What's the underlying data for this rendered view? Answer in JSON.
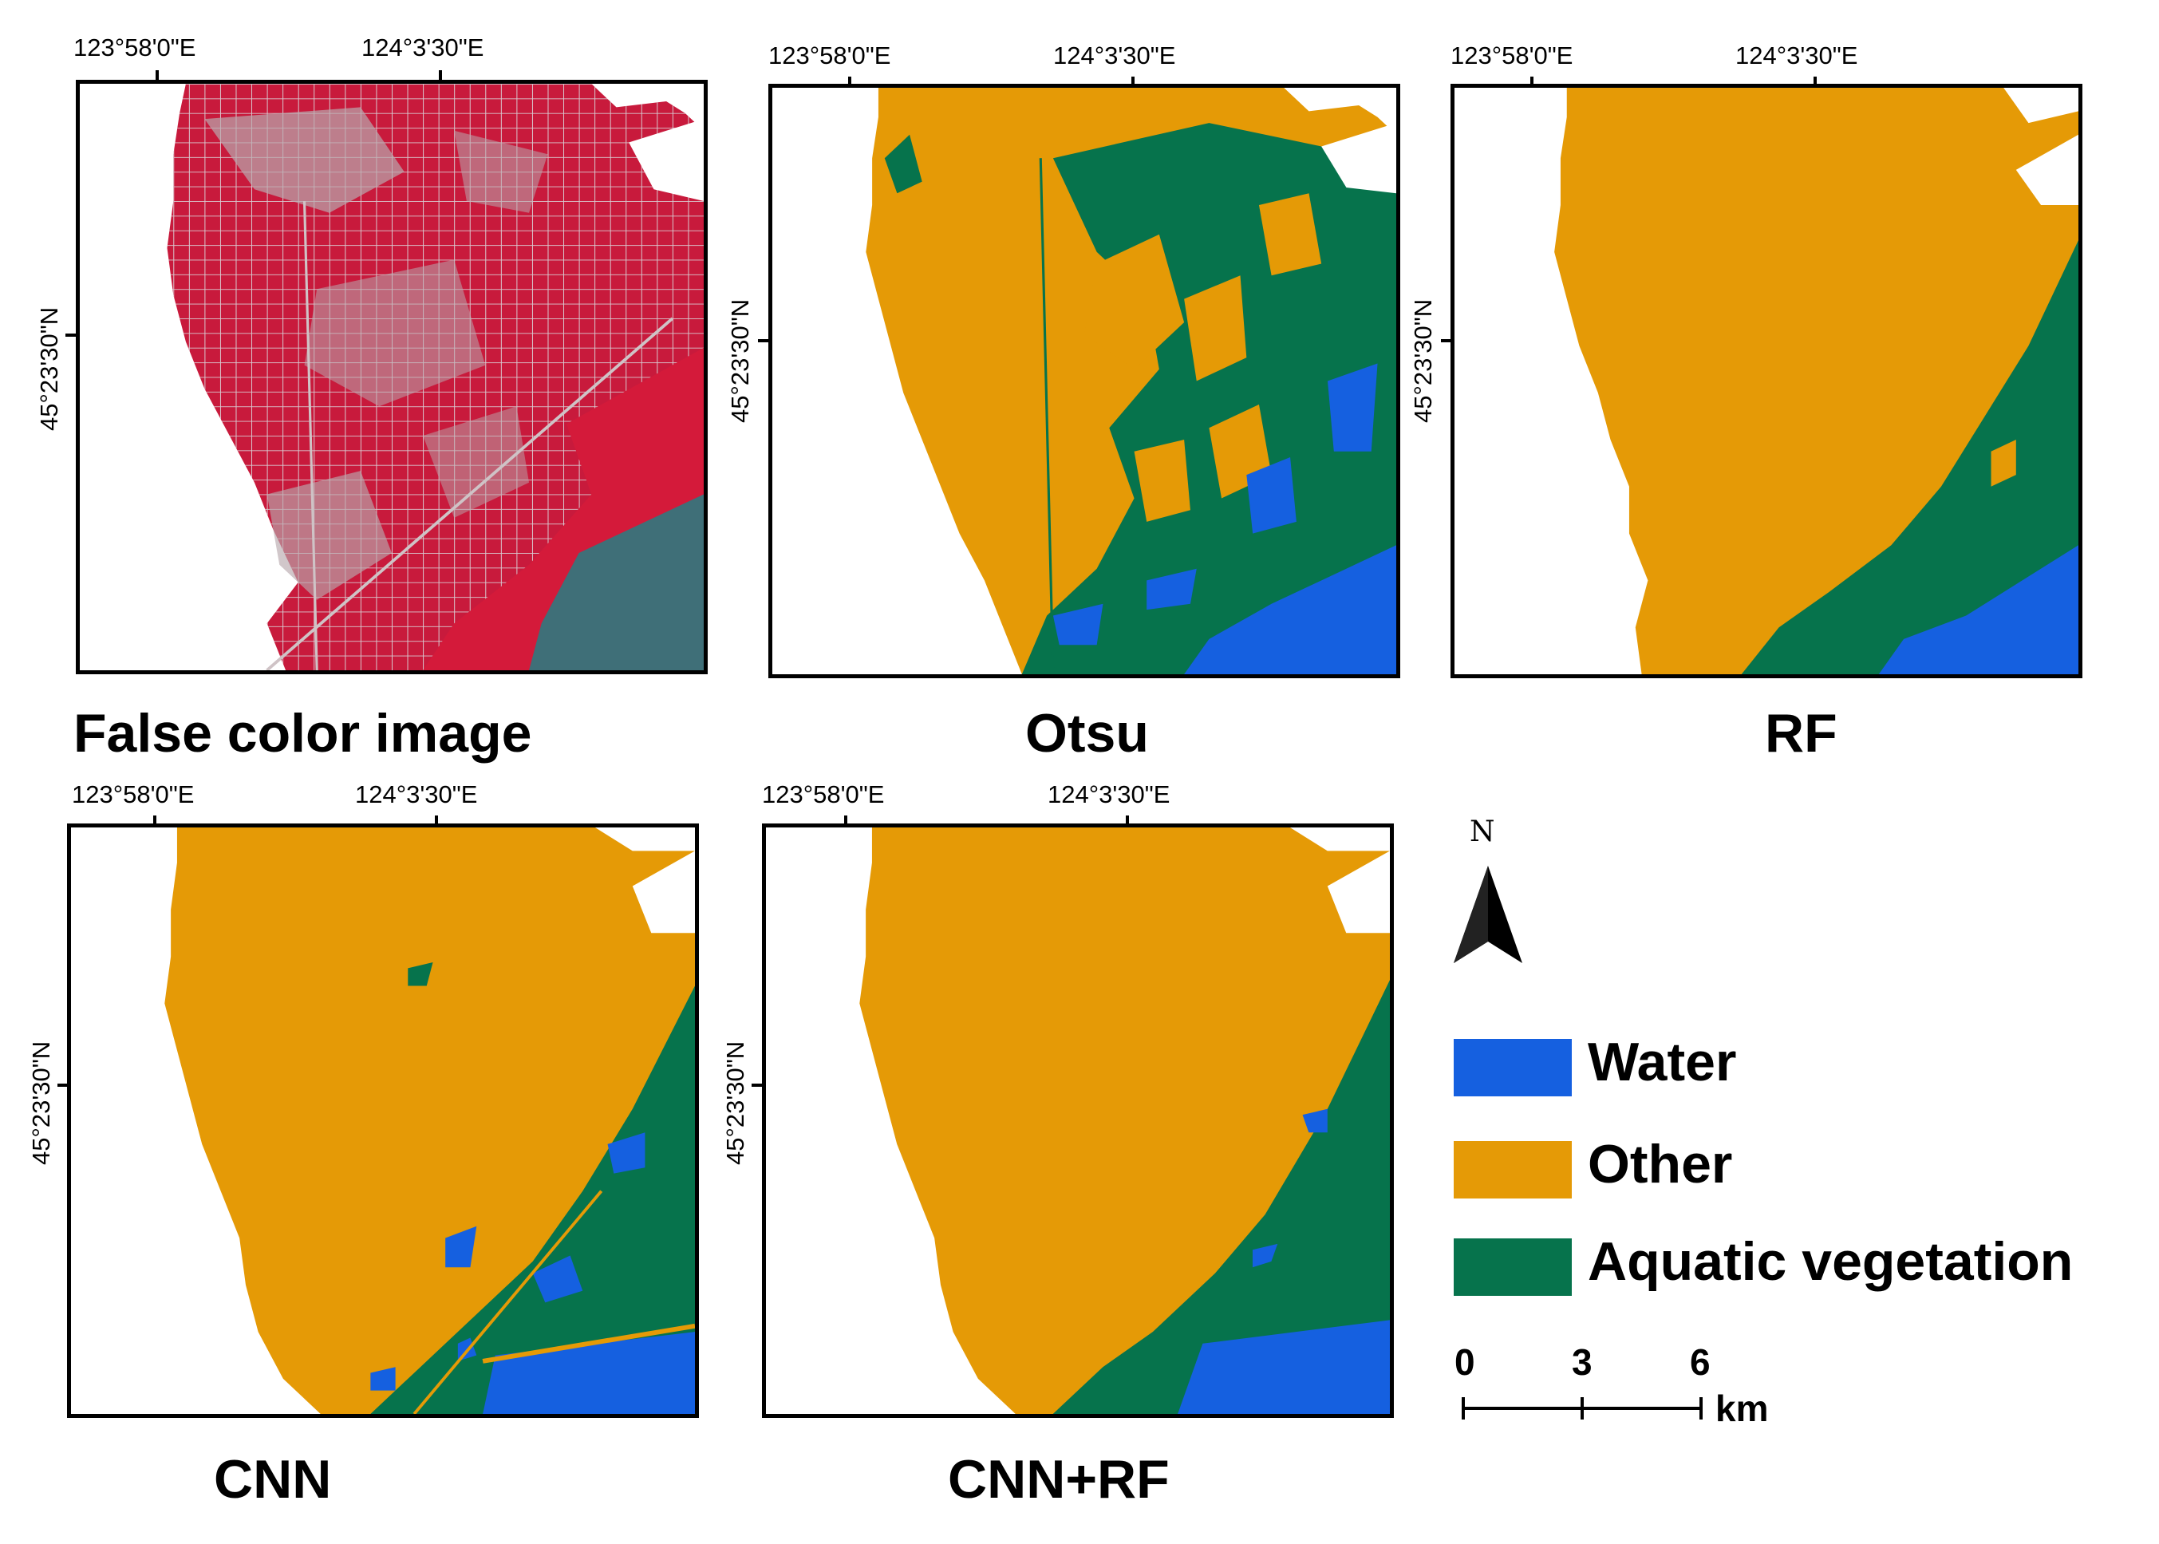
{
  "colors": {
    "water": "#1560e0",
    "other": "#e59a06",
    "aquatic": "#06734c",
    "false_color_red": "#c81a3c",
    "false_color_grey": "#b8a9ae"
  },
  "coords": {
    "lon1": "123°58'0\"E",
    "lon2": "124°3'30\"E",
    "lat1": "45°23'30\"N"
  },
  "panels": [
    {
      "id": "false-color",
      "caption": "False color image"
    },
    {
      "id": "otsu",
      "caption": "Otsu"
    },
    {
      "id": "rf",
      "caption": "RF"
    },
    {
      "id": "cnn",
      "caption": "CNN"
    },
    {
      "id": "cnn-rf",
      "caption": "CNN+RF"
    }
  ],
  "legend": {
    "items": [
      {
        "label": "Water",
        "color": "#1560e0"
      },
      {
        "label": "Other",
        "color": "#e59a06"
      },
      {
        "label": "Aquatic vegetation",
        "color": "#06734c"
      }
    ]
  },
  "north_arrow": {
    "label": "N"
  },
  "scale_bar": {
    "ticks": [
      "0",
      "3",
      "6"
    ],
    "unit": "km"
  }
}
